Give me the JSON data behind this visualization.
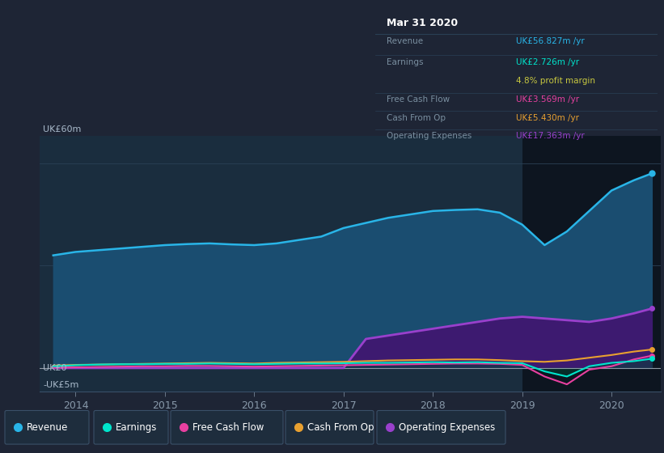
{
  "bg_color": "#1e2535",
  "plot_bg_color": "#1a2d3e",
  "highlight_bg_color": "#0d1520",
  "ylabel": "UK£60m",
  "y0_label": "UK£0",
  "yneg_label": "-UK£5m",
  "ylim": [
    -7,
    68
  ],
  "xlim": [
    2013.6,
    2020.55
  ],
  "xticks": [
    2014,
    2015,
    2016,
    2017,
    2018,
    2019,
    2020
  ],
  "grid_color": "#2a3f55",
  "x_years": [
    2013.75,
    2014.0,
    2014.25,
    2014.5,
    2014.75,
    2015.0,
    2015.25,
    2015.5,
    2015.75,
    2016.0,
    2016.25,
    2016.5,
    2016.75,
    2017.0,
    2017.25,
    2017.5,
    2017.75,
    2018.0,
    2018.25,
    2018.5,
    2018.75,
    2019.0,
    2019.25,
    2019.5,
    2019.75,
    2020.0,
    2020.25,
    2020.45
  ],
  "revenue": [
    33,
    34,
    34.5,
    35,
    35.5,
    36,
    36.3,
    36.5,
    36.2,
    36.0,
    36.5,
    37.5,
    38.5,
    41,
    42.5,
    44,
    45,
    46,
    46.3,
    46.5,
    45.5,
    42,
    36,
    40,
    46,
    52,
    55,
    57
  ],
  "earnings": [
    0.5,
    0.8,
    1.0,
    1.1,
    1.1,
    1.2,
    1.2,
    1.3,
    1.2,
    1.1,
    1.2,
    1.3,
    1.3,
    1.4,
    1.5,
    1.5,
    1.6,
    1.7,
    1.6,
    1.7,
    1.5,
    1.4,
    -1.0,
    -2.5,
    0.5,
    1.5,
    2.0,
    2.7
  ],
  "free_cash_flow": [
    0.1,
    0.2,
    0.3,
    0.4,
    0.5,
    0.5,
    0.6,
    0.6,
    0.5,
    0.4,
    0.5,
    0.6,
    0.7,
    0.8,
    0.9,
    1.0,
    1.1,
    1.2,
    1.3,
    1.3,
    1.2,
    0.9,
    -2.5,
    -4.8,
    -0.5,
    0.5,
    2.5,
    3.6
  ],
  "cash_from_op": [
    0.7,
    0.9,
    1.0,
    1.1,
    1.2,
    1.3,
    1.4,
    1.5,
    1.4,
    1.3,
    1.5,
    1.6,
    1.7,
    1.8,
    2.0,
    2.2,
    2.3,
    2.4,
    2.5,
    2.5,
    2.3,
    2.0,
    1.8,
    2.2,
    3.0,
    3.8,
    4.8,
    5.4
  ],
  "op_expenses": [
    0,
    0,
    0,
    0,
    0,
    0,
    0,
    0,
    0,
    0,
    0,
    0,
    0,
    0,
    8.5,
    9.5,
    10.5,
    11.5,
    12.5,
    13.5,
    14.5,
    15.0,
    14.5,
    14.0,
    13.5,
    14.5,
    16.0,
    17.4
  ],
  "revenue_color": "#29b5e8",
  "earnings_color": "#00e5cc",
  "free_cash_flow_color": "#e840a0",
  "cash_from_op_color": "#e8a030",
  "op_expenses_color": "#9940cc",
  "revenue_fill_color": "#1a4d70",
  "op_expenses_fill_color": "#3d1a70",
  "highlight_x_start": 2019.0,
  "highlight_x_end": 2020.55,
  "info_box": {
    "title": "Mar 31 2020",
    "revenue_label": "Revenue",
    "revenue_value": "UK£56.827m /yr",
    "revenue_color": "#29b5e8",
    "earnings_label": "Earnings",
    "earnings_value": "UK£2.726m /yr",
    "earnings_color": "#00e5cc",
    "profit_margin": "4.8% profit margin",
    "profit_margin_color": "#c8c840",
    "fcf_label": "Free Cash Flow",
    "fcf_value": "UK£3.569m /yr",
    "fcf_color": "#e840a0",
    "cashop_label": "Cash From Op",
    "cashop_value": "UK£5.430m /yr",
    "cashop_color": "#e8a030",
    "opex_label": "Operating Expenses",
    "opex_value": "UK£17.363m /yr",
    "opex_color": "#9940cc"
  },
  "legend_items": [
    "Revenue",
    "Earnings",
    "Free Cash Flow",
    "Cash From Op",
    "Operating Expenses"
  ],
  "legend_colors": [
    "#29b5e8",
    "#00e5cc",
    "#e840a0",
    "#e8a030",
    "#9940cc"
  ]
}
